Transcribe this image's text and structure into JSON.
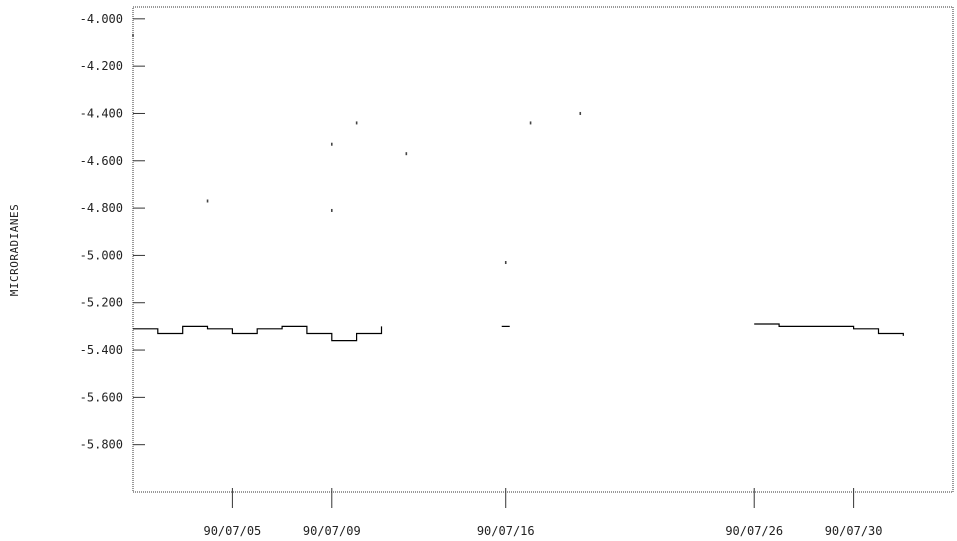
{
  "chart_data": {
    "type": "line",
    "title": "",
    "xlabel": "",
    "ylabel": "MICRORADIANES",
    "ylim": [
      -6.0,
      -3.95
    ],
    "xlim": [
      "90/07/01",
      "90/08/03"
    ],
    "y_ticks": [
      "-4.000",
      "-4.200",
      "-4.400",
      "-4.600",
      "-4.800",
      "-5.000",
      "-5.200",
      "-5.400",
      "-5.600",
      "-5.800"
    ],
    "x_ticks": [
      {
        "date": "90/07/05",
        "label": "90/07/05"
      },
      {
        "date": "90/07/09",
        "label": "90/07/09"
      },
      {
        "date": "90/07/16",
        "label": "90/07/16"
      },
      {
        "date": "90/07/26",
        "label": "90/07/26"
      },
      {
        "date": "90/07/30",
        "label": "90/07/30"
      }
    ],
    "grid": false,
    "line_color": "#000000",
    "series": [
      {
        "segments": [
          {
            "x": [
              "90/07/01",
              "90/07/02",
              "90/07/03",
              "90/07/04",
              "90/07/05",
              "90/07/06",
              "90/07/07",
              "90/07/08",
              "90/07/09",
              "90/07/10",
              "90/07/11"
            ],
            "y": [
              -5.31,
              -5.33,
              -5.3,
              -5.31,
              -5.33,
              -5.31,
              -5.3,
              -5.33,
              -5.36,
              -5.33,
              -5.3
            ]
          },
          {
            "x": [
              "90/07/16"
            ],
            "y": [
              -5.3
            ]
          },
          {
            "x": [
              "90/07/26",
              "90/07/27",
              "90/07/28",
              "90/07/29",
              "90/07/30",
              "90/07/31",
              "90/08/01"
            ],
            "y": [
              -5.29,
              -5.3,
              -5.3,
              -5.3,
              -5.31,
              -5.33,
              -5.34
            ]
          }
        ]
      }
    ],
    "scatter_points": [
      {
        "x": "90/07/01",
        "y": -4.07
      },
      {
        "x": "90/07/04",
        "y": -4.77
      },
      {
        "x": "90/07/09",
        "y": -4.53
      },
      {
        "x": "90/07/10",
        "y": -4.44
      },
      {
        "x": "90/07/09",
        "y": -4.81
      },
      {
        "x": "90/07/12",
        "y": -4.57
      },
      {
        "x": "90/07/16",
        "y": -5.03
      },
      {
        "x": "90/07/17",
        "y": -4.44
      },
      {
        "x": "90/07/19",
        "y": -4.4
      }
    ]
  }
}
